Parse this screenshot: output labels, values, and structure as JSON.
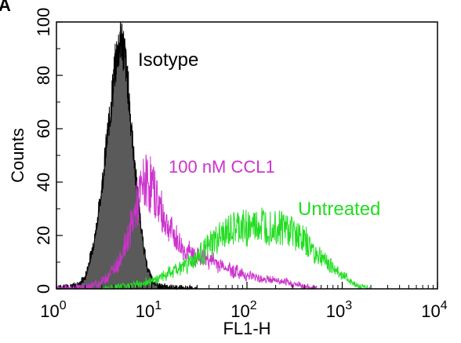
{
  "panel_label": "A",
  "chart_data": {
    "type": "area",
    "xlabel": "FL1-H",
    "ylabel": "Counts",
    "x_scale": "log",
    "xlim": [
      1,
      10000
    ],
    "ylim": [
      0,
      100
    ],
    "x_ticks": [
      {
        "base": "10",
        "exp": "0",
        "value": 1
      },
      {
        "base": "10",
        "exp": "1",
        "value": 10
      },
      {
        "base": "10",
        "exp": "2",
        "value": 100
      },
      {
        "base": "10",
        "exp": "3",
        "value": 1000
      },
      {
        "base": "10",
        "exp": "4",
        "value": 10000
      }
    ],
    "y_ticks": [
      "0",
      "20",
      "40",
      "60",
      "80",
      "100"
    ],
    "grid": false,
    "series": [
      {
        "name": "Isotype",
        "color": "#000000",
        "fill": "#5a5a5a",
        "x": [
          1,
          1.6,
          2,
          2.5,
          2.9,
          3.3,
          3.7,
          4.0,
          4.4,
          4.8,
          5.2,
          5.7,
          6.2,
          6.8,
          7.5,
          8.2,
          9.0,
          10.3,
          12.0,
          14.5,
          20,
          30
        ],
        "y": [
          0,
          1,
          4,
          18,
          34,
          52,
          67,
          79,
          90,
          94,
          88,
          74,
          58,
          42,
          28,
          16,
          8,
          3,
          1,
          0.5,
          0.2,
          0
        ]
      },
      {
        "name": "100 nM CCL1",
        "color": "#cc33cc",
        "x": [
          1,
          2,
          2.8,
          3.5,
          4.5,
          5.5,
          6.5,
          7.5,
          8.5,
          9.5,
          10.5,
          12,
          14,
          17,
          21,
          26,
          32,
          40,
          52,
          70,
          100,
          140,
          200,
          280,
          400,
          550
        ],
        "y": [
          0,
          0.5,
          2,
          5,
          10,
          18,
          27,
          35,
          40,
          40,
          37,
          31,
          25,
          20,
          15,
          13,
          12,
          11,
          9,
          7,
          5,
          4,
          3,
          2,
          1,
          0
        ]
      },
      {
        "name": "Untreated",
        "color": "#22dd22",
        "x": [
          3,
          5,
          8,
          12,
          18,
          25,
          35,
          50,
          70,
          100,
          150,
          200,
          300,
          400,
          550,
          800,
          1100,
          1500,
          2000
        ],
        "y": [
          0,
          1,
          2,
          4,
          7,
          10,
          14,
          19,
          22,
          23,
          24,
          24,
          22,
          18,
          13,
          8,
          4,
          1,
          0
        ]
      }
    ]
  }
}
